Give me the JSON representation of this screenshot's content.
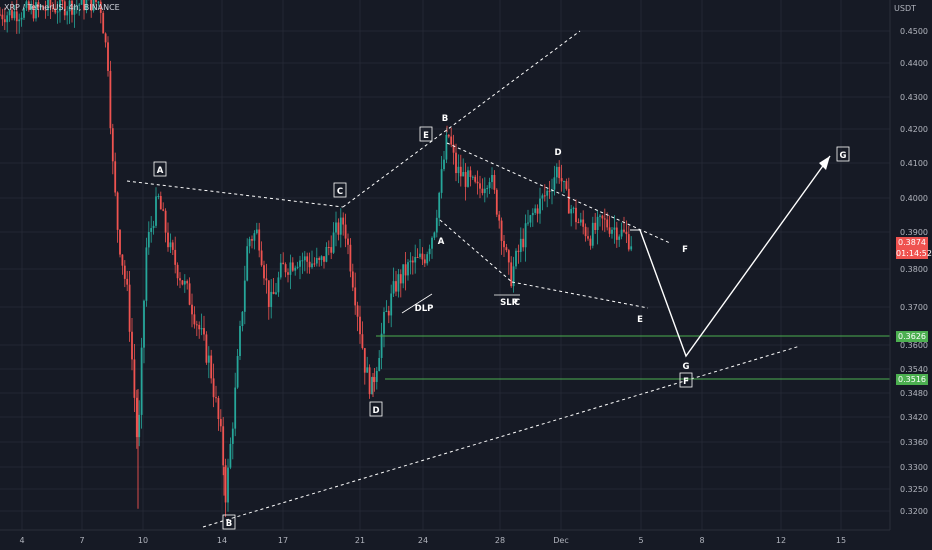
{
  "header": {
    "symbol_line": "XRP / TetherUS, 4h, BINANCE",
    "currency": "USDT"
  },
  "colors": {
    "bg": "#161a25",
    "up": "#26a69a",
    "down": "#ef5350",
    "grid": "#232733",
    "level": "#4caf50",
    "line": "#ffffff"
  },
  "price_axis": {
    "ticks": [
      "0.4500",
      "0.4400",
      "0.4300",
      "0.4200",
      "0.4100",
      "0.4000",
      "0.3900",
      "0.3800",
      "0.3700",
      "0.3600",
      "0.3540",
      "0.3480",
      "0.3420",
      "0.3360",
      "0.3300",
      "0.3250",
      "0.3200"
    ],
    "current": {
      "price": "0.3874",
      "countdown": "01:14:52"
    },
    "level_labels": [
      "0.3626",
      "0.3516"
    ]
  },
  "chart_data": {
    "type": "candlestick",
    "x_ticks": [
      "4",
      "7",
      "10",
      "14",
      "17",
      "21",
      "24",
      "28",
      "Dec",
      "5",
      "8",
      "12",
      "15"
    ],
    "series_summary": [
      {
        "t": 0,
        "price": 0.455
      },
      {
        "t": 100,
        "price": 0.459
      },
      {
        "t": 108,
        "price": 0.44
      },
      {
        "t": 112,
        "price": 0.412
      },
      {
        "t": 118,
        "price": 0.39
      },
      {
        "t": 128,
        "price": 0.372
      },
      {
        "t": 138,
        "price": 0.333
      },
      {
        "t": 146,
        "price": 0.385
      },
      {
        "t": 158,
        "price": 0.4
      },
      {
        "t": 170,
        "price": 0.385
      },
      {
        "t": 190,
        "price": 0.372
      },
      {
        "t": 210,
        "price": 0.355
      },
      {
        "t": 222,
        "price": 0.335
      },
      {
        "t": 226,
        "price": 0.323
      },
      {
        "t": 236,
        "price": 0.35
      },
      {
        "t": 248,
        "price": 0.388
      },
      {
        "t": 258,
        "price": 0.39
      },
      {
        "t": 270,
        "price": 0.37
      },
      {
        "t": 282,
        "price": 0.38
      },
      {
        "t": 298,
        "price": 0.383
      },
      {
        "t": 320,
        "price": 0.381
      },
      {
        "t": 336,
        "price": 0.39
      },
      {
        "t": 344,
        "price": 0.393
      },
      {
        "t": 356,
        "price": 0.372
      },
      {
        "t": 366,
        "price": 0.353
      },
      {
        "t": 372,
        "price": 0.349
      },
      {
        "t": 384,
        "price": 0.366
      },
      {
        "t": 396,
        "price": 0.376
      },
      {
        "t": 410,
        "price": 0.381
      },
      {
        "t": 424,
        "price": 0.383
      },
      {
        "t": 434,
        "price": 0.391
      },
      {
        "t": 442,
        "price": 0.407
      },
      {
        "t": 448,
        "price": 0.419
      },
      {
        "t": 456,
        "price": 0.408
      },
      {
        "t": 468,
        "price": 0.405
      },
      {
        "t": 478,
        "price": 0.402
      },
      {
        "t": 490,
        "price": 0.407
      },
      {
        "t": 502,
        "price": 0.39
      },
      {
        "t": 510,
        "price": 0.377
      },
      {
        "t": 520,
        "price": 0.386
      },
      {
        "t": 534,
        "price": 0.396
      },
      {
        "t": 548,
        "price": 0.402
      },
      {
        "t": 558,
        "price": 0.409
      },
      {
        "t": 566,
        "price": 0.4
      },
      {
        "t": 578,
        "price": 0.393
      },
      {
        "t": 590,
        "price": 0.389
      },
      {
        "t": 602,
        "price": 0.393
      },
      {
        "t": 616,
        "price": 0.391
      },
      {
        "t": 632,
        "price": 0.3874
      }
    ],
    "annotations": {
      "points": [
        "A",
        "B",
        "C",
        "D",
        "E",
        "B",
        "A",
        "DLP",
        "SLP",
        "C",
        "D",
        "E",
        "F",
        "G",
        "F",
        "G"
      ]
    },
    "projection_labels": [
      "G",
      "F"
    ]
  }
}
